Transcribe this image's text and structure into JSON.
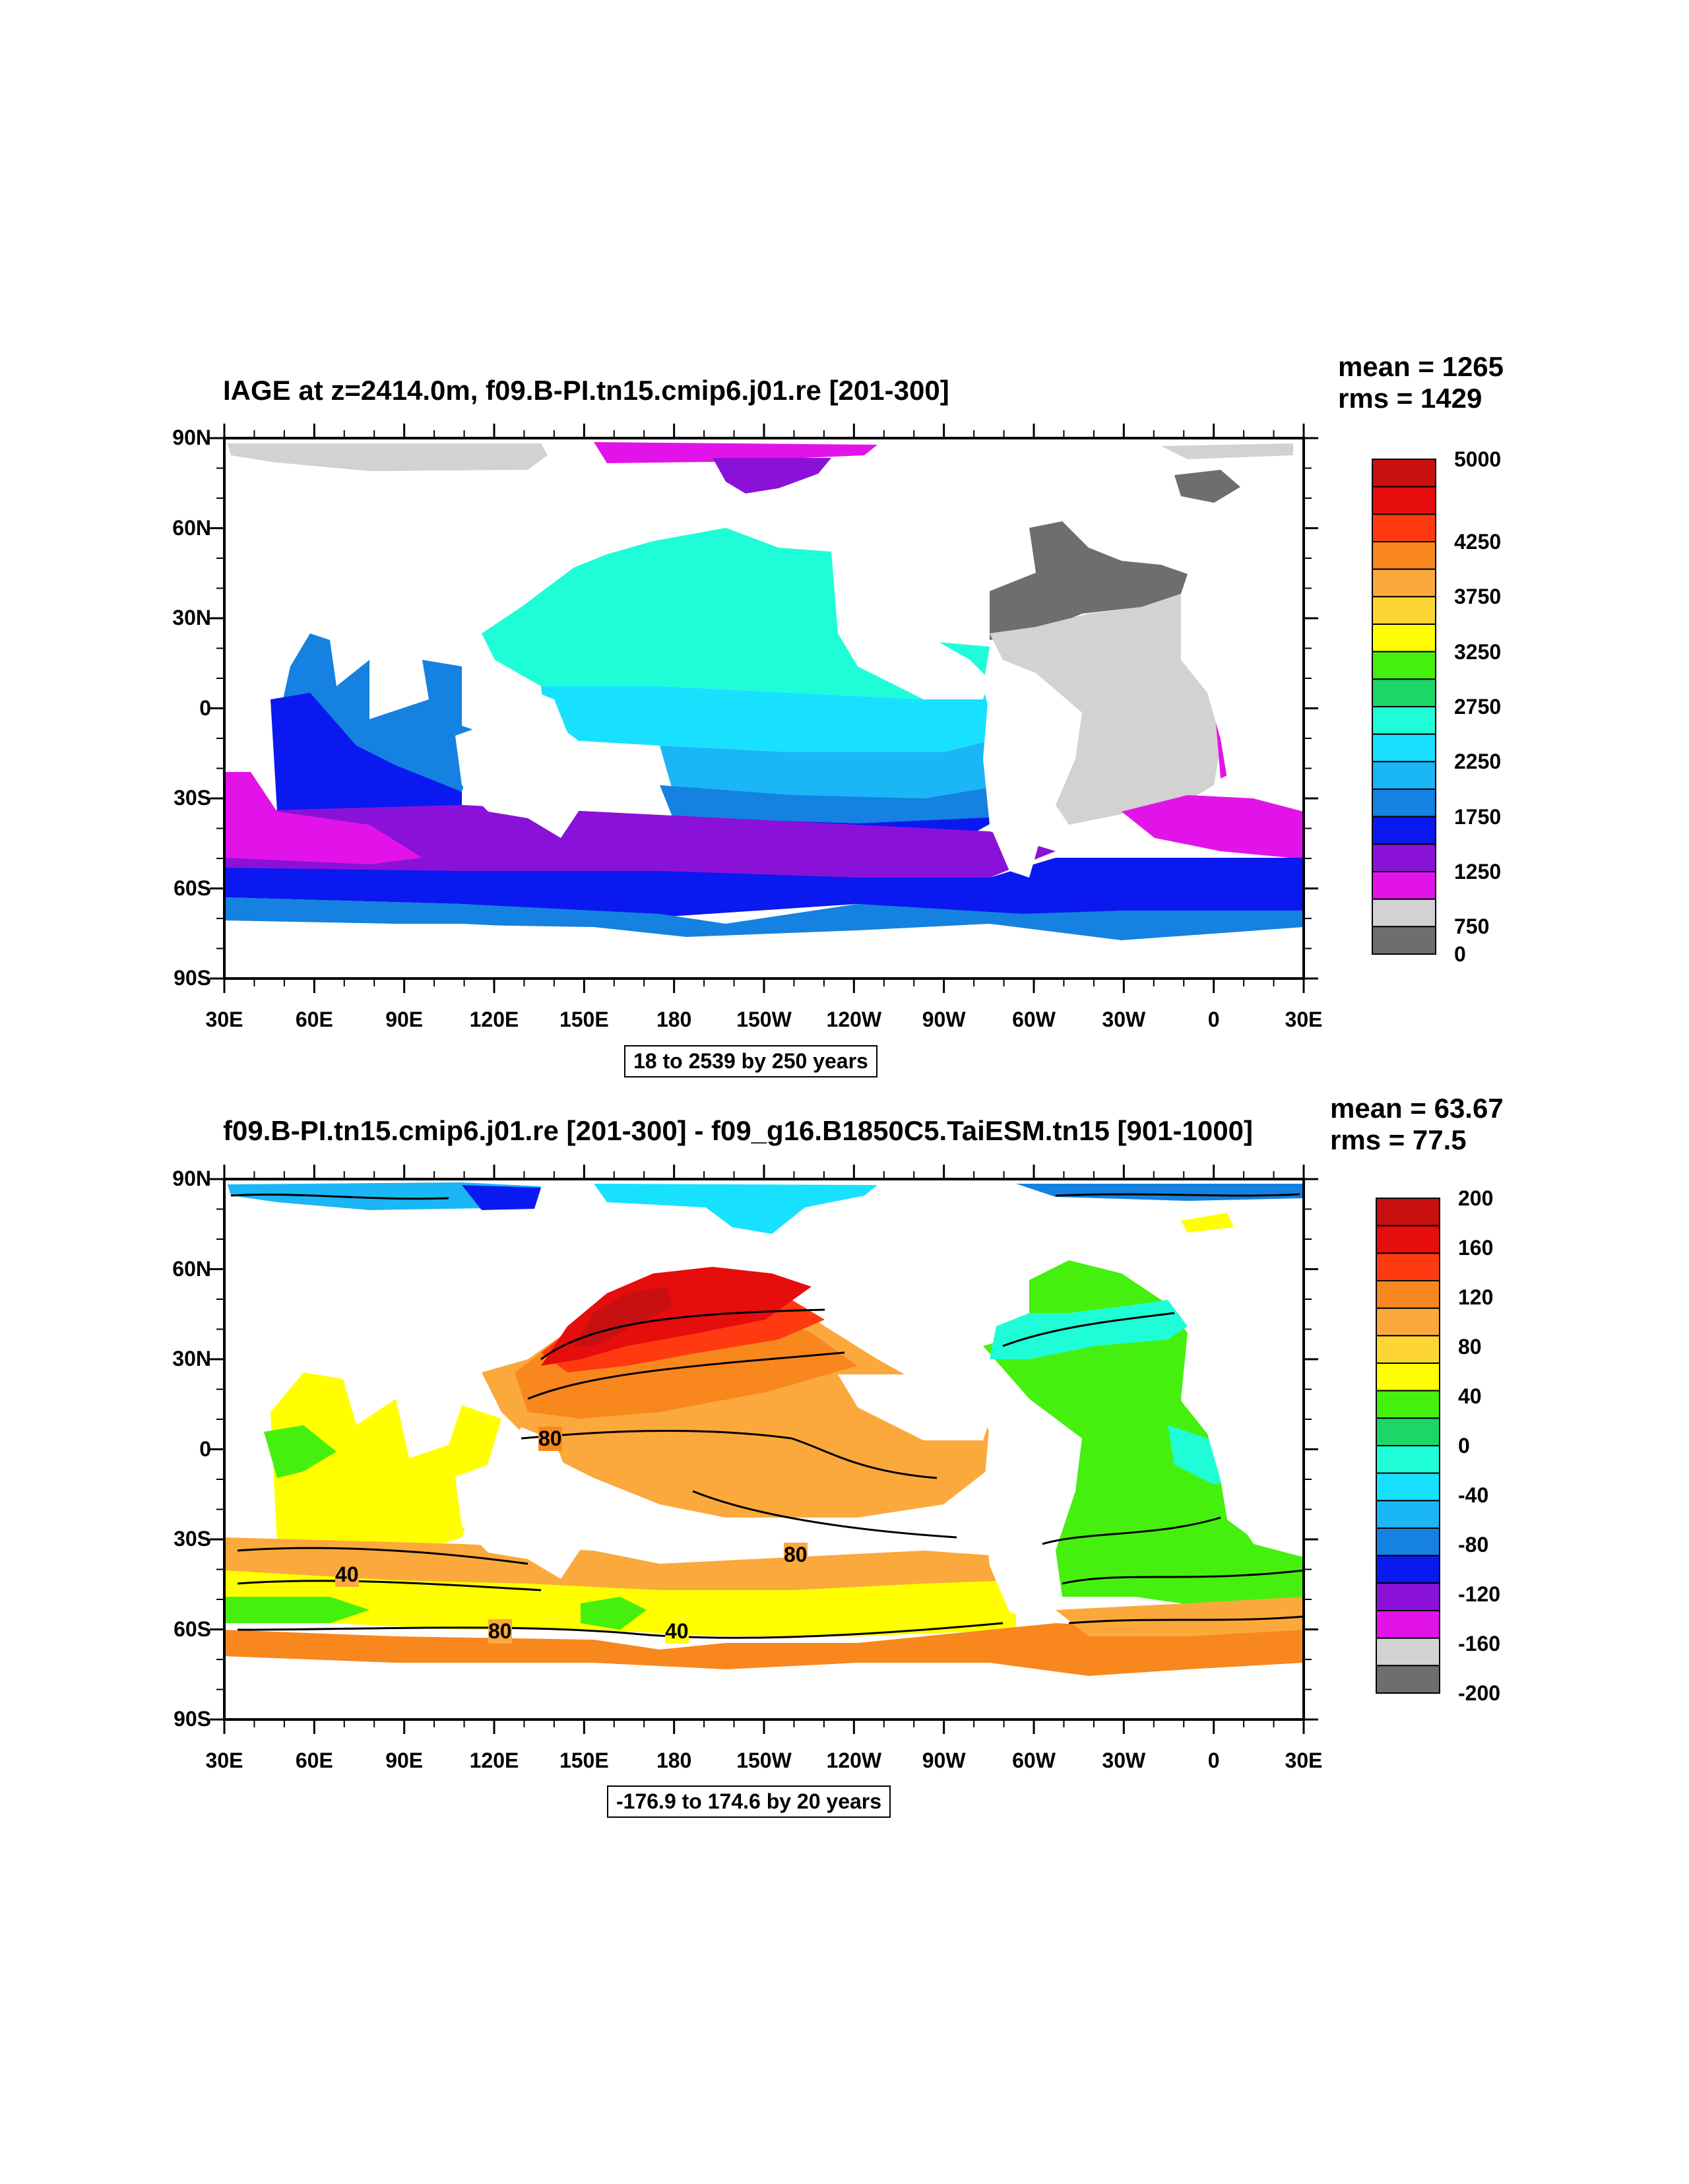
{
  "panels": [
    {
      "title": "IAGE at z=2414.0m, f09.B-PI.tn15.cmip6.j01.re [201-300]",
      "mean_text": "mean = 1265",
      "rms_text": "rms = 1429",
      "info_text": "18 to 2539 by 250 years",
      "y_labels": [
        "90N",
        "60N",
        "30N",
        "0",
        "30S",
        "60S",
        "90S"
      ],
      "x_labels": [
        "30E",
        "60E",
        "90E",
        "120E",
        "150E",
        "180",
        "150W",
        "120W",
        "90W",
        "60W",
        "30W",
        "0",
        "30E"
      ],
      "colorbar_colors": [
        "#c81010",
        "#e60d0d",
        "#ff3a10",
        "#f8871e",
        "#fba93c",
        "#fdd635",
        "#ffff00",
        "#46f00e",
        "#1cd768",
        "#1efdd8",
        "#18e1ff",
        "#1ab6f6",
        "#1581e0",
        "#0a19f0",
        "#8a12d8",
        "#e213e8",
        "#d2d2d2",
        "#6e6e6e"
      ],
      "colorbar_labels": [
        "5000",
        "4250",
        "3750",
        "3250",
        "2750",
        "2250",
        "1750",
        "1250",
        "750",
        "0"
      ]
    },
    {
      "title": "f09.B-PI.tn15.cmip6.j01.re [201-300] - f09_g16.B1850C5.TaiESM.tn15 [901-1000]",
      "mean_text": "mean = 63.67",
      "rms_text": "rms = 77.5",
      "info_text": "-176.9 to 174.6 by 20 years",
      "y_labels": [
        "90N",
        "60N",
        "30N",
        "0",
        "30S",
        "60S",
        "90S"
      ],
      "x_labels": [
        "30E",
        "60E",
        "90E",
        "120E",
        "150E",
        "180",
        "150W",
        "120W",
        "90W",
        "60W",
        "30W",
        "0",
        "30E"
      ],
      "colorbar_colors": [
        "#c81010",
        "#e60d0d",
        "#ff3a10",
        "#f8871e",
        "#fba93c",
        "#fdd635",
        "#ffff00",
        "#46f00e",
        "#1cd768",
        "#1efdd8",
        "#18e1ff",
        "#1ab6f6",
        "#1581e0",
        "#0a19f0",
        "#8a12d8",
        "#e213e8",
        "#d2d2d2",
        "#6e6e6e"
      ],
      "colorbar_labels": [
        "200",
        "160",
        "120",
        "80",
        "40",
        "0",
        "-40",
        "-80",
        "-120",
        "-160",
        "-200"
      ],
      "contour_labels": [
        "80",
        "80",
        "40",
        "80",
        "40"
      ]
    }
  ]
}
